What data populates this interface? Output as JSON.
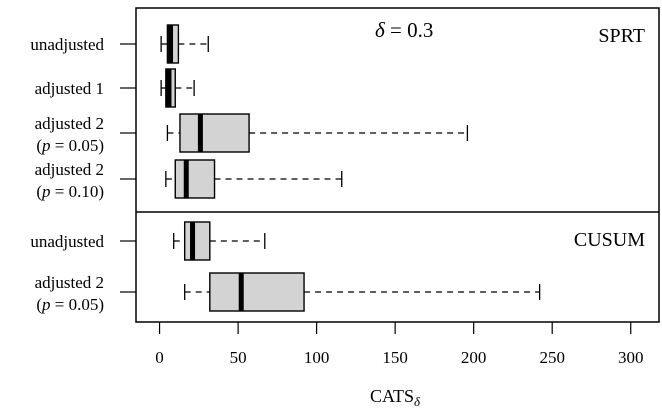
{
  "chart_data": {
    "type": "boxplot",
    "xlabel": "CATS",
    "xlabel_sub": "δ",
    "xlim": [
      -15,
      318
    ],
    "xticks": [
      0,
      50,
      100,
      150,
      200,
      250,
      300
    ],
    "xtick_labels": [
      "0",
      "50",
      "100",
      "150",
      "200",
      "250",
      "300"
    ],
    "annotation": {
      "symbol": "δ",
      "text": " = 0.3"
    },
    "panels": [
      {
        "name": "SPRT",
        "rows": [
          {
            "label": [
              "unadjusted"
            ],
            "whisker_low": 1,
            "q1": 5,
            "median": 7,
            "q3": 12,
            "whisker_high": 31
          },
          {
            "label": [
              "adjusted 1"
            ],
            "whisker_low": 1,
            "q1": 4,
            "median": 6,
            "q3": 10,
            "whisker_high": 22
          },
          {
            "label": [
              "adjusted 2",
              "(p = 0.05)"
            ],
            "whisker_low": 5,
            "q1": 13,
            "median": 26,
            "q3": 57,
            "whisker_high": 196
          },
          {
            "label": [
              "adjusted 2",
              "(p = 0.10)"
            ],
            "whisker_low": 4,
            "q1": 10,
            "median": 17,
            "q3": 35,
            "whisker_high": 116
          }
        ]
      },
      {
        "name": "CUSUM",
        "rows": [
          {
            "label": [
              "unadjusted"
            ],
            "whisker_low": 9,
            "q1": 16,
            "median": 21,
            "q3": 32,
            "whisker_high": 67
          },
          {
            "label": [
              "adjusted 2",
              "(p = 0.05)"
            ],
            "whisker_low": 16,
            "q1": 32,
            "median": 52,
            "q3": 92,
            "whisker_high": 242
          }
        ]
      }
    ],
    "box_fill": "#d3d3d3",
    "grid": false
  }
}
